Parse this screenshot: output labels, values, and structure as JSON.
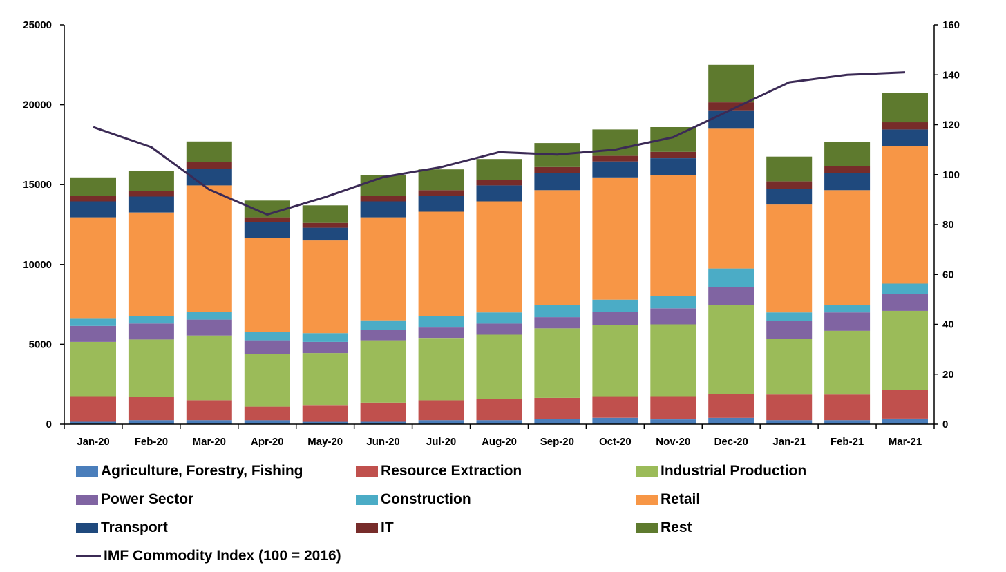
{
  "chart_data": {
    "type": "bar",
    "stacked": true,
    "categories": [
      "Jan-20",
      "Feb-20",
      "Mar-20",
      "Apr-20",
      "May-20",
      "Jun-20",
      "Jul-20",
      "Aug-20",
      "Sep-20",
      "Oct-20",
      "Nov-20",
      "Dec-20",
      "Jan-21",
      "Feb-21",
      "Mar-21"
    ],
    "series": [
      {
        "name": "Agriculture, Forestry, Fishing",
        "color": "#4a7ebb",
        "values": [
          150,
          250,
          250,
          250,
          150,
          150,
          250,
          250,
          350,
          400,
          300,
          400,
          250,
          250,
          350
        ]
      },
      {
        "name": "Resource Extraction",
        "color": "#c0504d",
        "values": [
          1600,
          1450,
          1250,
          850,
          1050,
          1200,
          1250,
          1350,
          1300,
          1350,
          1450,
          1500,
          1600,
          1600,
          1800
        ]
      },
      {
        "name": "Industrial Production",
        "color": "#9bbb59",
        "values": [
          3400,
          3600,
          4050,
          3300,
          3250,
          3900,
          3900,
          4000,
          4350,
          4450,
          4500,
          5550,
          3500,
          4000,
          4950
        ]
      },
      {
        "name": "Power Sector",
        "color": "#8064a2",
        "values": [
          1000,
          1000,
          1000,
          850,
          700,
          650,
          650,
          700,
          700,
          850,
          1000,
          1150,
          1100,
          1150,
          1050
        ]
      },
      {
        "name": "Construction",
        "color": "#4bacc6",
        "values": [
          450,
          450,
          500,
          550,
          550,
          600,
          700,
          700,
          750,
          750,
          750,
          1150,
          550,
          450,
          650
        ]
      },
      {
        "name": "Retail",
        "color": "#f79646",
        "values": [
          6350,
          6500,
          7900,
          5850,
          5800,
          6450,
          6550,
          6950,
          7200,
          7650,
          7600,
          8750,
          6750,
          7200,
          8600
        ]
      },
      {
        "name": "Transport",
        "color": "#1f497d",
        "values": [
          1000,
          1000,
          1050,
          1000,
          800,
          1000,
          1000,
          1000,
          1050,
          1000,
          1050,
          1150,
          1000,
          1050,
          1050
        ]
      },
      {
        "name": "IT",
        "color": "#772c2a",
        "values": [
          350,
          350,
          400,
          300,
          300,
          350,
          350,
          350,
          400,
          350,
          400,
          500,
          450,
          450,
          450
        ]
      },
      {
        "name": "Rest",
        "color": "#5e7a2e",
        "values": [
          1150,
          1250,
          1300,
          1050,
          1100,
          1300,
          1300,
          1300,
          1500,
          1650,
          1550,
          2350,
          1550,
          1500,
          1850
        ]
      }
    ],
    "line": {
      "name": "IMF Commodity Index (100 = 2016)",
      "color": "#3b2a55",
      "axis": "right",
      "values": [
        119,
        111,
        94,
        84,
        91,
        99,
        103,
        109,
        108,
        110,
        115,
        126,
        137,
        140,
        141
      ]
    },
    "ylim": [
      0,
      25000
    ],
    "yticks": [
      "0",
      "5000",
      "10000",
      "15000",
      "20000",
      "25000"
    ],
    "y2lim": [
      0,
      160
    ],
    "y2ticks": [
      "0",
      "20",
      "40",
      "60",
      "80",
      "100",
      "120",
      "140",
      "160"
    ],
    "legend_placement": "bottom",
    "grid": false
  }
}
